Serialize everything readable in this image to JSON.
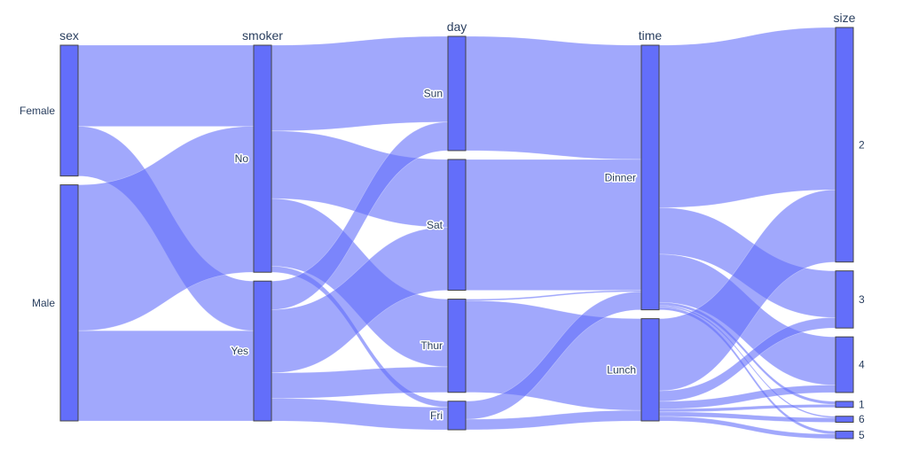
{
  "chart_data": {
    "type": "parallel_categories",
    "title": "",
    "colors": {
      "band": "#636efa",
      "bar_fill": "#636efa",
      "bar_stroke": "#444444",
      "text": "#2a3f5f"
    },
    "dimensions": [
      {
        "key": "sex",
        "label": "sex",
        "label_position": "top",
        "categories": [
          {
            "name": "Female",
            "count": 87
          },
          {
            "name": "Male",
            "count": 157
          }
        ]
      },
      {
        "key": "smoker",
        "label": "smoker",
        "label_position": "top",
        "categories": [
          {
            "name": "No",
            "count": 151
          },
          {
            "name": "Yes",
            "count": 93
          }
        ]
      },
      {
        "key": "day",
        "label": "day",
        "label_position": "top",
        "categories": [
          {
            "name": "Sun",
            "count": 76
          },
          {
            "name": "Sat",
            "count": 87
          },
          {
            "name": "Thur",
            "count": 62
          },
          {
            "name": "Fri",
            "count": 19
          }
        ]
      },
      {
        "key": "time",
        "label": "time",
        "label_position": "top",
        "categories": [
          {
            "name": "Dinner",
            "count": 176
          },
          {
            "name": "Lunch",
            "count": 68
          }
        ]
      },
      {
        "key": "size",
        "label": "size",
        "label_position": "top",
        "categories": [
          {
            "name": "2",
            "count": 156
          },
          {
            "name": "3",
            "count": 38
          },
          {
            "name": "4",
            "count": 37
          },
          {
            "name": "1",
            "count": 4
          },
          {
            "name": "6",
            "count": 4
          },
          {
            "name": "5",
            "count": 5
          }
        ]
      }
    ],
    "flows": [
      {
        "from": [
          "sex",
          "Female"
        ],
        "to": [
          "smoker",
          "No"
        ],
        "count": 54
      },
      {
        "from": [
          "sex",
          "Female"
        ],
        "to": [
          "smoker",
          "Yes"
        ],
        "count": 33
      },
      {
        "from": [
          "sex",
          "Male"
        ],
        "to": [
          "smoker",
          "No"
        ],
        "count": 97
      },
      {
        "from": [
          "sex",
          "Male"
        ],
        "to": [
          "smoker",
          "Yes"
        ],
        "count": 60
      },
      {
        "from": [
          "smoker",
          "No"
        ],
        "to": [
          "day",
          "Sun"
        ],
        "count": 57
      },
      {
        "from": [
          "smoker",
          "No"
        ],
        "to": [
          "day",
          "Sat"
        ],
        "count": 45
      },
      {
        "from": [
          "smoker",
          "No"
        ],
        "to": [
          "day",
          "Thur"
        ],
        "count": 45
      },
      {
        "from": [
          "smoker",
          "No"
        ],
        "to": [
          "day",
          "Fri"
        ],
        "count": 4
      },
      {
        "from": [
          "smoker",
          "Yes"
        ],
        "to": [
          "day",
          "Sun"
        ],
        "count": 19
      },
      {
        "from": [
          "smoker",
          "Yes"
        ],
        "to": [
          "day",
          "Sat"
        ],
        "count": 42
      },
      {
        "from": [
          "smoker",
          "Yes"
        ],
        "to": [
          "day",
          "Thur"
        ],
        "count": 17
      },
      {
        "from": [
          "smoker",
          "Yes"
        ],
        "to": [
          "day",
          "Fri"
        ],
        "count": 15
      },
      {
        "from": [
          "day",
          "Sun"
        ],
        "to": [
          "time",
          "Dinner"
        ],
        "count": 76
      },
      {
        "from": [
          "day",
          "Sat"
        ],
        "to": [
          "time",
          "Dinner"
        ],
        "count": 87
      },
      {
        "from": [
          "day",
          "Thur"
        ],
        "to": [
          "time",
          "Dinner"
        ],
        "count": 1
      },
      {
        "from": [
          "day",
          "Thur"
        ],
        "to": [
          "time",
          "Lunch"
        ],
        "count": 61
      },
      {
        "from": [
          "day",
          "Fri"
        ],
        "to": [
          "time",
          "Dinner"
        ],
        "count": 12
      },
      {
        "from": [
          "day",
          "Fri"
        ],
        "to": [
          "time",
          "Lunch"
        ],
        "count": 7
      },
      {
        "from": [
          "time",
          "Dinner"
        ],
        "to": [
          "size",
          "2"
        ],
        "count": 108
      },
      {
        "from": [
          "time",
          "Dinner"
        ],
        "to": [
          "size",
          "3"
        ],
        "count": 31
      },
      {
        "from": [
          "time",
          "Dinner"
        ],
        "to": [
          "size",
          "4"
        ],
        "count": 32
      },
      {
        "from": [
          "time",
          "Dinner"
        ],
        "to": [
          "size",
          "1"
        ],
        "count": 2
      },
      {
        "from": [
          "time",
          "Dinner"
        ],
        "to": [
          "size",
          "6"
        ],
        "count": 1
      },
      {
        "from": [
          "time",
          "Dinner"
        ],
        "to": [
          "size",
          "5"
        ],
        "count": 2
      },
      {
        "from": [
          "time",
          "Lunch"
        ],
        "to": [
          "size",
          "2"
        ],
        "count": 48
      },
      {
        "from": [
          "time",
          "Lunch"
        ],
        "to": [
          "size",
          "3"
        ],
        "count": 7
      },
      {
        "from": [
          "time",
          "Lunch"
        ],
        "to": [
          "size",
          "4"
        ],
        "count": 5
      },
      {
        "from": [
          "time",
          "Lunch"
        ],
        "to": [
          "size",
          "1"
        ],
        "count": 2
      },
      {
        "from": [
          "time",
          "Lunch"
        ],
        "to": [
          "size",
          "6"
        ],
        "count": 3
      },
      {
        "from": [
          "time",
          "Lunch"
        ],
        "to": [
          "size",
          "5"
        ],
        "count": 3
      }
    ]
  }
}
